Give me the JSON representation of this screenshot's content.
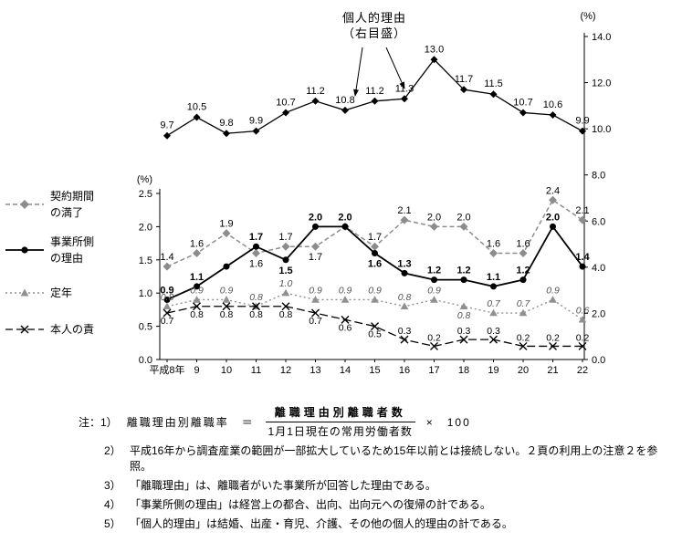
{
  "annotation": {
    "line1": "個人的理由",
    "line2": "（右目盛）"
  },
  "legend": {
    "items": [
      {
        "label": "契約期間\nの満了"
      },
      {
        "label": "事業所側\nの理由"
      },
      {
        "label": "定年"
      },
      {
        "label": "本人の責"
      }
    ]
  },
  "chart_data": {
    "type": "line",
    "categories": [
      "平成8年",
      "9",
      "10",
      "11",
      "12",
      "13",
      "14",
      "15",
      "16",
      "17",
      "18",
      "19",
      "20",
      "21",
      "22"
    ],
    "left_axis": {
      "label": "(%)",
      "min": 0,
      "max": 2.5,
      "ticks": [
        0,
        0.5,
        1,
        1.5,
        2,
        2.5
      ]
    },
    "right_axis": {
      "label": "(%)",
      "min": 0,
      "max": 14,
      "ticks": [
        0,
        2,
        4,
        6,
        8,
        10,
        12,
        14
      ]
    },
    "series": [
      {
        "name": "個人的理由（右目盛）",
        "axis": "right",
        "values": [
          9.7,
          10.5,
          9.8,
          9.9,
          10.7,
          11.2,
          10.8,
          11.2,
          11.3,
          13.0,
          11.7,
          11.5,
          10.7,
          10.6,
          9.9
        ]
      },
      {
        "name": "契約期間の満了",
        "axis": "left",
        "values": [
          1.4,
          1.6,
          1.9,
          1.6,
          1.7,
          1.7,
          2.0,
          1.7,
          2.1,
          2.0,
          2.0,
          1.6,
          1.6,
          2.4,
          2.1
        ]
      },
      {
        "name": "事業所側の理由",
        "axis": "left",
        "values": [
          0.9,
          1.1,
          1.4,
          1.7,
          1.5,
          2.0,
          2.0,
          1.6,
          1.3,
          1.2,
          1.2,
          1.1,
          1.2,
          2.0,
          1.4
        ]
      },
      {
        "name": "定年",
        "axis": "left",
        "values": [
          0.8,
          0.9,
          0.9,
          0.8,
          1.0,
          0.9,
          0.9,
          0.9,
          0.8,
          0.9,
          0.8,
          0.7,
          0.7,
          0.9,
          0.6
        ]
      },
      {
        "name": "本人の責",
        "axis": "left",
        "values": [
          0.7,
          0.8,
          0.8,
          0.8,
          0.8,
          0.7,
          0.6,
          0.5,
          0.3,
          0.2,
          0.3,
          0.3,
          0.2,
          0.2,
          0.2
        ]
      }
    ]
  },
  "footnotes": {
    "prefix": "注：1）",
    "formula_label": "離職理由別離職率　＝",
    "numerator": "離職理由別離職者数",
    "denominator": "1月1日現在の常用労働者数",
    "multiplier": "×　100",
    "items": [
      {
        "no": "2）",
        "text": "平成16年から調査産業の範囲が一部拡大しているため15年以前とは接続しない。２頁の利用上の注意２を参照。"
      },
      {
        "no": "3）",
        "text": "「離職理由」は、離職者がいた事業所が回答した理由である。"
      },
      {
        "no": "4）",
        "text": "「事業所側の理由」は経営上の都合、出向、出向元への復帰の計である。"
      },
      {
        "no": "5）",
        "text": "「個人的理由」は結婚、出産・育児、介護、その他の個人的理由の計である。"
      }
    ]
  }
}
